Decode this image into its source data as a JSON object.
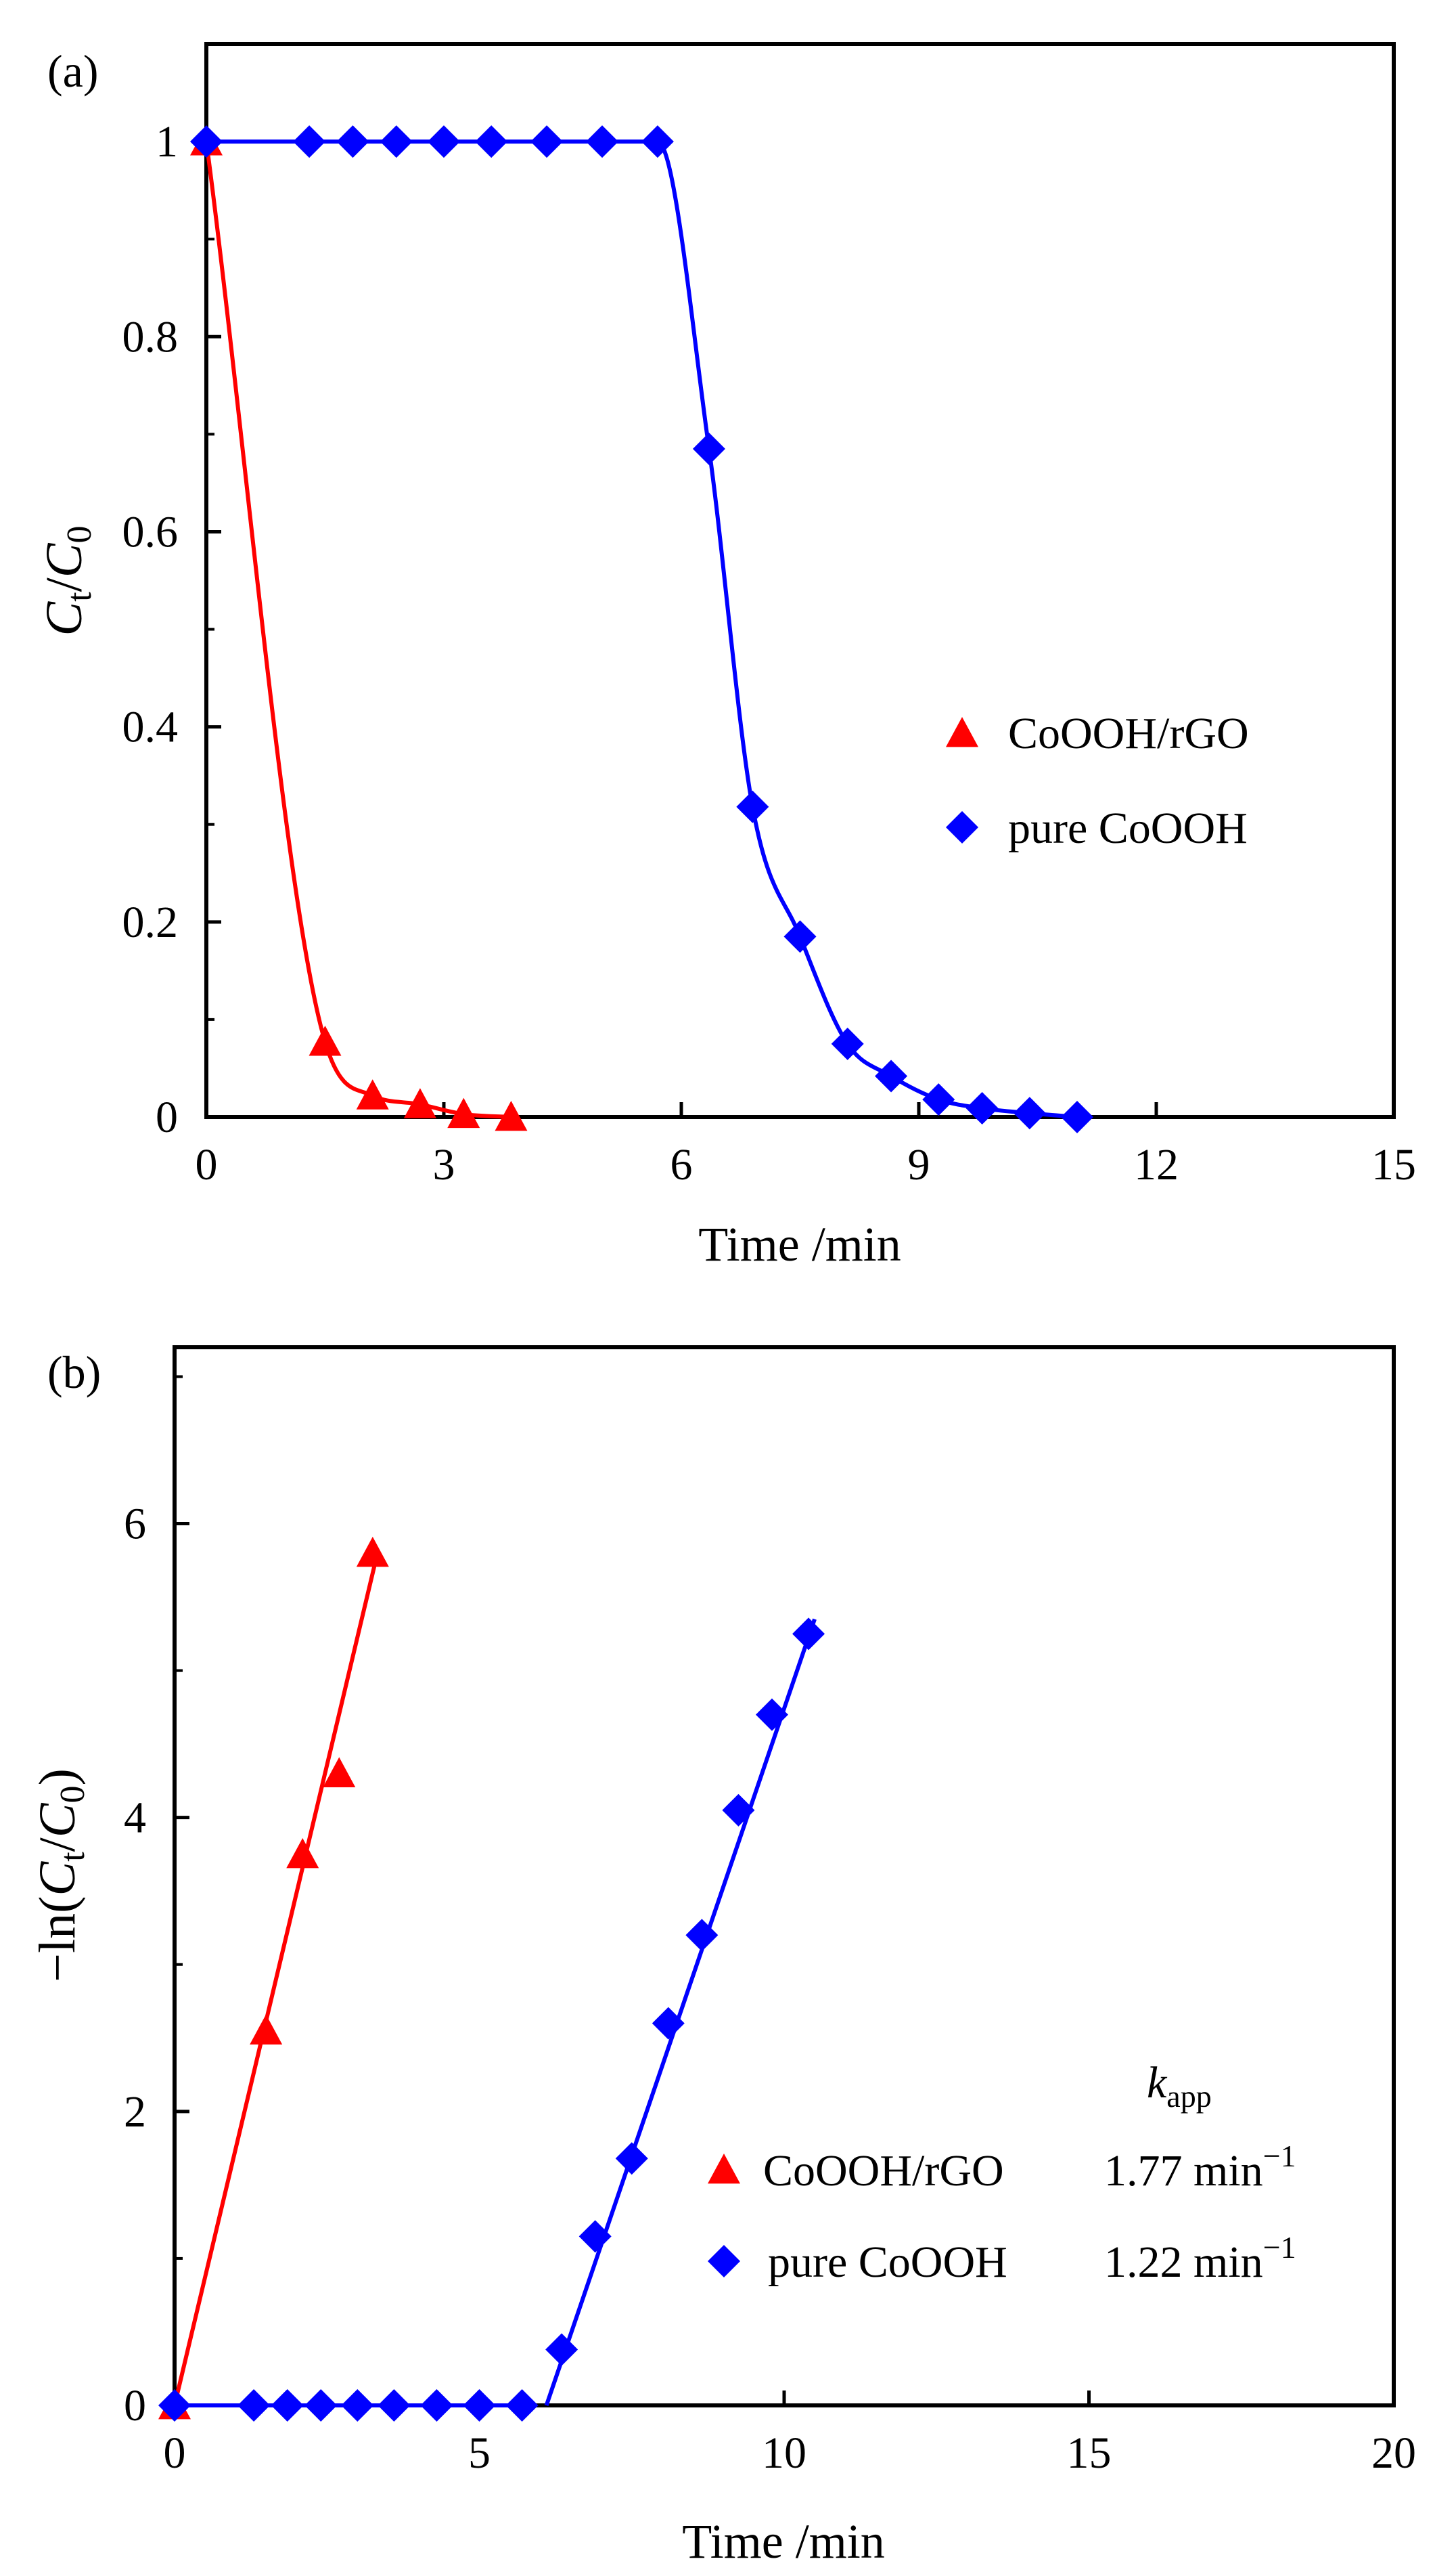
{
  "chart_data": [
    {
      "panel_label": "(a)",
      "type": "line",
      "xlabel": "Time /min",
      "ylabel": {
        "main": "C",
        "sub1": "t",
        "slash": "/",
        "main2": "C",
        "sub2": "0"
      },
      "xlim": [
        0,
        15
      ],
      "ylim": [
        0,
        1.1
      ],
      "x_ticks": [
        "0",
        "3",
        "6",
        "9",
        "12",
        "15"
      ],
      "y_ticks": [
        "0",
        "0.2",
        "0.4",
        "0.6",
        "0.8",
        "1"
      ],
      "legend_placement": "right-middle",
      "series": [
        {
          "name": "CoOOH/rGO",
          "color": "#ff0000",
          "marker": "triangle",
          "x": [
            0,
            1.5,
            2.1,
            2.7,
            3.25,
            3.85
          ],
          "y": [
            1,
            0.077,
            0.022,
            0.013,
            0.003,
            0.0
          ]
        },
        {
          "name": "pure CoOOH",
          "color": "#0000ff",
          "marker": "diamond",
          "x": [
            0,
            1.3,
            1.85,
            2.4,
            3.0,
            3.6,
            4.3,
            5.0,
            5.7,
            6.35,
            6.9,
            7.5,
            8.1,
            8.65,
            9.25,
            9.8,
            10.4,
            11.0
          ],
          "y": [
            1,
            1,
            1,
            1,
            1,
            1,
            1,
            1,
            1,
            0.685,
            0.318,
            0.185,
            0.075,
            0.042,
            0.018,
            0.009,
            0.004,
            0.0
          ]
        }
      ]
    },
    {
      "panel_label": "(b)",
      "type": "scatter",
      "xlabel": "Time /min",
      "ylabel": {
        "prefix": "−ln(",
        "main": "C",
        "sub1": "t",
        "slash": "/",
        "main2": "C",
        "sub2": "0",
        "suffix": ")"
      },
      "xlim": [
        0,
        20
      ],
      "ylim": [
        0,
        7.2
      ],
      "x_ticks": [
        "0",
        "5",
        "10",
        "15",
        "20"
      ],
      "y_ticks": [
        "0",
        "2",
        "4",
        "6"
      ],
      "legend_placement": "bottom-right",
      "legend_header": {
        "main": "k",
        "sub": "app"
      },
      "series": [
        {
          "name": "CoOOH/rGO",
          "rate": "1.77 min",
          "rate_exp": "−1",
          "color": "#ff0000",
          "marker": "triangle",
          "x": [
            0,
            1.5,
            2.1,
            2.7,
            3.25
          ],
          "y": [
            0,
            2.55,
            3.75,
            4.3,
            5.8
          ],
          "fit": {
            "x": [
              0,
              3.3
            ],
            "y": [
              0,
              5.75
            ]
          }
        },
        {
          "name": "pure CoOOH",
          "rate": "1.22 min",
          "rate_exp": "−1",
          "color": "#0000ff",
          "marker": "diamond",
          "x": [
            0,
            1.3,
            1.85,
            2.4,
            3.0,
            3.6,
            4.3,
            5.0,
            5.7,
            6.35,
            6.9,
            7.5,
            8.1,
            8.65,
            9.25,
            9.8,
            10.4
          ],
          "y": [
            0,
            0,
            0,
            0,
            0,
            0,
            0,
            0,
            0,
            0.38,
            1.15,
            1.68,
            2.6,
            3.2,
            4.05,
            4.7,
            5.25
          ],
          "fit": {
            "x": [
              6.1,
              10.5
            ],
            "y": [
              0,
              5.35
            ]
          }
        }
      ]
    }
  ]
}
